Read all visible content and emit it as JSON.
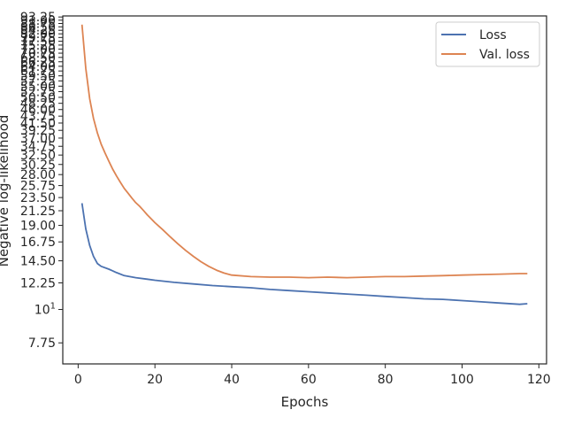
{
  "chart_data": {
    "type": "line",
    "title": "",
    "xlabel": "Epochs",
    "ylabel": "Negative log-likelihood",
    "xlim": [
      -4,
      122
    ],
    "ylim": [
      6.6,
      94
    ],
    "yscale": "log",
    "grid": false,
    "legend_position": "top-right",
    "x_ticks": [
      0,
      20,
      40,
      60,
      80,
      100,
      120
    ],
    "x_tick_labels": [
      "0",
      "20",
      "40",
      "60",
      "80",
      "100",
      "120"
    ],
    "y_ticks": [
      7.75,
      10,
      12.25,
      14.5,
      16.75,
      19,
      21.25,
      23.5,
      25.75,
      28,
      30.25,
      32.5,
      34.75,
      37,
      39.25,
      41.5,
      43.75,
      46,
      48.25,
      50.5,
      52.75,
      55,
      57.25,
      59.5,
      61.75,
      64,
      66.25,
      68.5,
      70.75,
      73,
      75.25,
      77.5,
      79.75,
      82,
      84.25,
      86.5,
      88.75,
      91,
      93.25
    ],
    "y_tick_labels": [
      "7.75",
      "10^1",
      "12.25",
      "14.50",
      "16.75",
      "19.00",
      "21.25",
      "23.50",
      "25.75",
      "28.00",
      "30.25",
      "32.50",
      "34.75",
      "37.00",
      "39.25",
      "41.50",
      "43.75",
      "46.00",
      "48.25",
      "50.50",
      "52.75",
      "55.00",
      "57.25",
      "59.50",
      "61.75",
      "64.00",
      "66.25",
      "68.50",
      "70.75",
      "73.00",
      "75.25",
      "77.50",
      "79.75",
      "82.00",
      "84.25",
      "86.50",
      "88.75",
      "91.00",
      "93.25"
    ],
    "series": [
      {
        "name": "Loss",
        "color": "#4c72b0",
        "points": [
          [
            1,
            22.5
          ],
          [
            2,
            18.5
          ],
          [
            3,
            16.3
          ],
          [
            4,
            15.0
          ],
          [
            5,
            14.2
          ],
          [
            6,
            13.9
          ],
          [
            8,
            13.6
          ],
          [
            10,
            13.25
          ],
          [
            12,
            12.95
          ],
          [
            15,
            12.75
          ],
          [
            18,
            12.6
          ],
          [
            20,
            12.5
          ],
          [
            25,
            12.3
          ],
          [
            30,
            12.15
          ],
          [
            35,
            12.0
          ],
          [
            40,
            11.9
          ],
          [
            45,
            11.8
          ],
          [
            50,
            11.65
          ],
          [
            55,
            11.55
          ],
          [
            60,
            11.45
          ],
          [
            65,
            11.35
          ],
          [
            70,
            11.25
          ],
          [
            75,
            11.15
          ],
          [
            80,
            11.05
          ],
          [
            85,
            10.95
          ],
          [
            90,
            10.85
          ],
          [
            95,
            10.8
          ],
          [
            100,
            10.7
          ],
          [
            105,
            10.6
          ],
          [
            110,
            10.5
          ],
          [
            115,
            10.4
          ],
          [
            117,
            10.45
          ]
        ]
      },
      {
        "name": "Val. loss",
        "color": "#dd8452",
        "points": [
          [
            1,
            88
          ],
          [
            2,
            63
          ],
          [
            3,
            50
          ],
          [
            4,
            43
          ],
          [
            5,
            38.5
          ],
          [
            6,
            35.3
          ],
          [
            7,
            33.0
          ],
          [
            8,
            31.0
          ],
          [
            9,
            29.2
          ],
          [
            10,
            27.7
          ],
          [
            11,
            26.4
          ],
          [
            12,
            25.2
          ],
          [
            13,
            24.3
          ],
          [
            14,
            23.4
          ],
          [
            15,
            22.6
          ],
          [
            16,
            22.0
          ],
          [
            17,
            21.3
          ],
          [
            18,
            20.6
          ],
          [
            19,
            20.0
          ],
          [
            20,
            19.4
          ],
          [
            22,
            18.4
          ],
          [
            24,
            17.4
          ],
          [
            26,
            16.5
          ],
          [
            28,
            15.7
          ],
          [
            30,
            15.0
          ],
          [
            32,
            14.4
          ],
          [
            34,
            13.9
          ],
          [
            36,
            13.5
          ],
          [
            38,
            13.2
          ],
          [
            40,
            13.0
          ],
          [
            45,
            12.85
          ],
          [
            50,
            12.8
          ],
          [
            55,
            12.8
          ],
          [
            60,
            12.75
          ],
          [
            65,
            12.8
          ],
          [
            70,
            12.75
          ],
          [
            75,
            12.8
          ],
          [
            80,
            12.85
          ],
          [
            85,
            12.85
          ],
          [
            90,
            12.9
          ],
          [
            95,
            12.95
          ],
          [
            100,
            13.0
          ],
          [
            105,
            13.05
          ],
          [
            110,
            13.1
          ],
          [
            115,
            13.15
          ],
          [
            117,
            13.15
          ]
        ]
      }
    ]
  }
}
